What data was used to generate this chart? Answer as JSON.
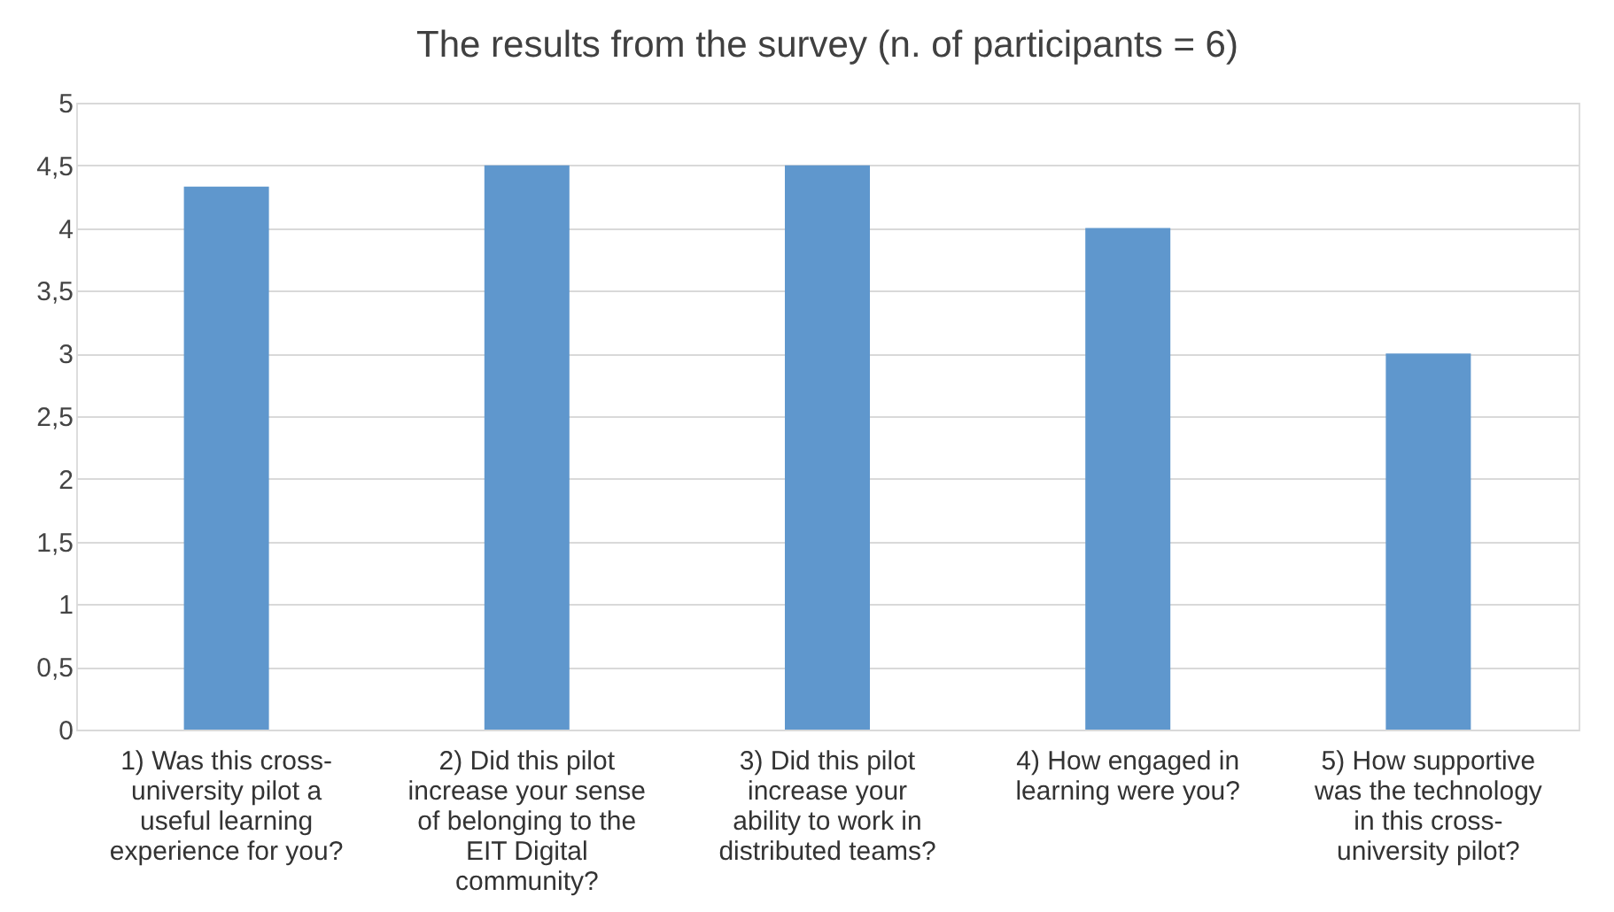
{
  "chart_data": {
    "type": "bar",
    "title": "The results from the survey (n. of participants = 6)",
    "categories": [
      "1) Was this cross-university pilot a useful learning experience for you?",
      "2) Did this pilot increase your sense of belonging to the EIT Digital community?",
      "3) Did this pilot increase your ability to work in distributed teams?",
      "4) How engaged in learning were you?",
      "5) How supportive was the technology in this cross-university pilot?"
    ],
    "values": [
      4.33,
      4.5,
      4.5,
      4.0,
      3.0
    ],
    "color": "#5f97cd",
    "ylim": [
      0,
      5
    ],
    "yticks": [
      0,
      {
        "value": 0.5,
        "label": "0,5"
      },
      1,
      {
        "value": 1.5,
        "label": "1,5"
      },
      2,
      {
        "value": 2.5,
        "label": "2,5"
      },
      3,
      {
        "value": 3.5,
        "label": "3,5"
      },
      4,
      {
        "value": 4.5,
        "label": "4,5"
      },
      5
    ],
    "grid": "y"
  }
}
